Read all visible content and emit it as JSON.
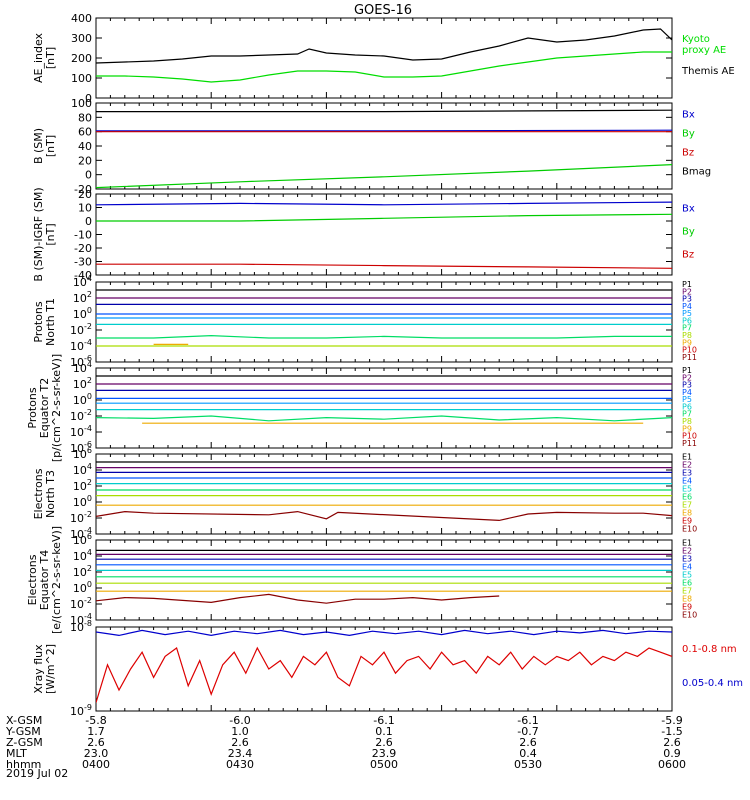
{
  "title": "GOES-16",
  "date_label": "2019 Jul 02",
  "chart_data": [
    {
      "type": "line",
      "name": "ae",
      "ylabel": "AE_index\n[nT]",
      "ylim": [
        0,
        400
      ],
      "yticks": [
        0,
        100,
        200,
        300,
        400
      ],
      "log": false,
      "series": [
        {
          "name": "Kyoto\nproxy AE",
          "color": "#00dd00",
          "x": [
            0,
            0.05,
            0.1,
            0.15,
            0.2,
            0.25,
            0.3,
            0.35,
            0.4,
            0.45,
            0.5,
            0.55,
            0.6,
            0.65,
            0.7,
            0.75,
            0.8,
            0.85,
            0.9,
            0.95,
            1
          ],
          "y": [
            110,
            110,
            105,
            95,
            80,
            90,
            115,
            135,
            135,
            130,
            105,
            105,
            110,
            135,
            160,
            180,
            200,
            210,
            220,
            230,
            230
          ]
        },
        {
          "name": "Themis AE",
          "color": "#000000",
          "x": [
            0,
            0.05,
            0.1,
            0.15,
            0.2,
            0.25,
            0.3,
            0.35,
            0.37,
            0.4,
            0.45,
            0.5,
            0.55,
            0.6,
            0.65,
            0.7,
            0.75,
            0.8,
            0.85,
            0.9,
            0.95,
            0.98,
            1
          ],
          "y": [
            175,
            180,
            185,
            195,
            210,
            210,
            215,
            220,
            245,
            225,
            215,
            210,
            190,
            195,
            230,
            260,
            300,
            280,
            290,
            310,
            340,
            345,
            290
          ]
        }
      ]
    },
    {
      "type": "line",
      "name": "b_sm",
      "ylabel": "B (SM)\n[nT]",
      "ylim": [
        -20,
        100
      ],
      "yticks": [
        -20,
        0,
        20,
        40,
        60,
        80,
        100
      ],
      "log": false,
      "series": [
        {
          "name": "Bx",
          "color": "#0000cc",
          "x": [
            0,
            0.5,
            1
          ],
          "y": [
            61,
            61,
            62
          ]
        },
        {
          "name": "By",
          "color": "#00cc00",
          "x": [
            0,
            0.25,
            0.5,
            0.75,
            1
          ],
          "y": [
            -18,
            -10,
            -3,
            5,
            14
          ]
        },
        {
          "name": "Bz",
          "color": "#cc0000",
          "x": [
            0,
            0.5,
            1
          ],
          "y": [
            60,
            60,
            60
          ]
        },
        {
          "name": "Bmag",
          "color": "#000000",
          "x": [
            0,
            0.5,
            1
          ],
          "y": [
            88,
            88,
            90
          ]
        }
      ]
    },
    {
      "type": "line",
      "name": "b_igrf",
      "ylabel": "B (SM)-IGRF (SM)\n[nT]",
      "ylim": [
        -40,
        20
      ],
      "yticks": [
        -40,
        -30,
        -20,
        -10,
        0,
        10,
        20
      ],
      "log": false,
      "series": [
        {
          "name": "Bx",
          "color": "#0000cc",
          "x": [
            0,
            0.25,
            0.5,
            0.75,
            1
          ],
          "y": [
            12,
            13,
            12,
            13,
            14
          ]
        },
        {
          "name": "By",
          "color": "#00cc00",
          "x": [
            0,
            0.25,
            0.5,
            0.75,
            1
          ],
          "y": [
            0,
            0,
            2,
            4,
            5
          ]
        },
        {
          "name": "Bz",
          "color": "#cc0000",
          "x": [
            0,
            0.25,
            0.5,
            0.75,
            1
          ],
          "y": [
            -32,
            -32,
            -33,
            -34,
            -35
          ]
        }
      ]
    },
    {
      "type": "line",
      "name": "protons_t1",
      "ylabel": "Protons\nNorth T1",
      "ylim": [
        -6,
        4
      ],
      "yticks": [
        -6,
        -4,
        -2,
        0,
        2,
        4
      ],
      "log": true,
      "series": [
        {
          "name": "P1",
          "color": "#000000",
          "x": [
            0,
            1
          ],
          "y": [
            3,
            3
          ]
        },
        {
          "name": "P2",
          "color": "#660066",
          "x": [
            0,
            1
          ],
          "y": [
            2,
            2
          ]
        },
        {
          "name": "P3",
          "color": "#0000aa",
          "x": [
            0,
            1
          ],
          "y": [
            1.2,
            1.2
          ]
        },
        {
          "name": "P4",
          "color": "#0055ff",
          "x": [
            0,
            1
          ],
          "y": [
            0,
            0
          ]
        },
        {
          "name": "P5",
          "color": "#0099ff",
          "x": [
            0,
            1
          ],
          "y": [
            -0.5,
            -0.5
          ]
        },
        {
          "name": "P6",
          "color": "#00cccc",
          "x": [
            0,
            1
          ],
          "y": [
            -1.3,
            -1.3
          ]
        },
        {
          "name": "P7",
          "color": "#00dd66",
          "x": [
            0,
            0.1,
            0.2,
            0.3,
            0.4,
            0.5,
            0.6,
            0.7,
            0.8,
            0.9,
            1
          ],
          "y": [
            -3,
            -3,
            -2.7,
            -3,
            -3,
            -2.8,
            -3,
            -3,
            -3,
            -2.8,
            -2.8
          ]
        },
        {
          "name": "P8",
          "color": "#aadd00",
          "x": [
            0,
            1
          ],
          "y": [
            -4,
            -4
          ]
        },
        {
          "name": "P9",
          "color": "#eeaa00",
          "x": [
            0.1,
            0.16
          ],
          "y": [
            -3.8,
            -3.8
          ]
        },
        {
          "name": "P10",
          "color": "#cc0000",
          "x": [
            0,
            1
          ],
          "y": [
            -8,
            -8
          ]
        },
        {
          "name": "P11",
          "color": "#880000",
          "x": [
            0,
            1
          ],
          "y": [
            -8,
            -8
          ]
        }
      ]
    },
    {
      "type": "line",
      "name": "protons_t2",
      "ylabel": "Protons\nEquator T2\n[p/(cm^2-s-sr-keV)]",
      "ylim": [
        -6,
        4
      ],
      "yticks": [
        -6,
        -4,
        -2,
        0,
        2,
        4
      ],
      "log": true,
      "series": [
        {
          "name": "P1",
          "color": "#000000",
          "x": [
            0,
            1
          ],
          "y": [
            3,
            3
          ]
        },
        {
          "name": "P2",
          "color": "#660066",
          "x": [
            0,
            1
          ],
          "y": [
            2,
            2
          ]
        },
        {
          "name": "P3",
          "color": "#0000aa",
          "x": [
            0,
            1
          ],
          "y": [
            1.2,
            1.2
          ]
        },
        {
          "name": "P4",
          "color": "#0055ff",
          "x": [
            0,
            1
          ],
          "y": [
            0.2,
            0.2
          ]
        },
        {
          "name": "P5",
          "color": "#0099ff",
          "x": [
            0,
            1
          ],
          "y": [
            -0.4,
            -0.4
          ]
        },
        {
          "name": "P6",
          "color": "#00cccc",
          "x": [
            0,
            1
          ],
          "y": [
            -1.2,
            -1.2
          ]
        },
        {
          "name": "P7",
          "color": "#00dd66",
          "x": [
            0,
            0.1,
            0.2,
            0.3,
            0.4,
            0.5,
            0.6,
            0.7,
            0.8,
            0.9,
            1
          ],
          "y": [
            -2.2,
            -2.3,
            -2.0,
            -2.6,
            -2.2,
            -2.4,
            -2.0,
            -2.5,
            -2.2,
            -2.6,
            -2.2
          ]
        },
        {
          "name": "P8",
          "color": "#aadd00",
          "x": [
            0,
            1
          ],
          "y": [
            -8,
            -8
          ]
        },
        {
          "name": "P9",
          "color": "#eeaa00",
          "x": [
            0.08,
            0.3,
            0.85,
            0.95
          ],
          "y": [
            -2.9,
            -2.9,
            -2.9,
            -2.9
          ]
        },
        {
          "name": "P10",
          "color": "#cc0000",
          "x": [
            0,
            1
          ],
          "y": [
            -8,
            -8
          ]
        },
        {
          "name": "P11",
          "color": "#880000",
          "x": [
            0,
            1
          ],
          "y": [
            -8,
            -8
          ]
        }
      ]
    },
    {
      "type": "line",
      "name": "electrons_t3",
      "ylabel": "Electrons\nNorth T3",
      "ylim": [
        -4,
        6
      ],
      "yticks": [
        -4,
        -2,
        0,
        2,
        4,
        6
      ],
      "log": true,
      "series": [
        {
          "name": "E1",
          "color": "#000000",
          "x": [
            0,
            1
          ],
          "y": [
            5,
            5
          ]
        },
        {
          "name": "E2",
          "color": "#660066",
          "x": [
            0,
            1
          ],
          "y": [
            4.3,
            4.3
          ]
        },
        {
          "name": "E3",
          "color": "#0000aa",
          "x": [
            0,
            1
          ],
          "y": [
            3.7,
            3.7
          ]
        },
        {
          "name": "E4",
          "color": "#0055ff",
          "x": [
            0,
            1
          ],
          "y": [
            3,
            3
          ]
        },
        {
          "name": "E5",
          "color": "#00cccc",
          "x": [
            0,
            1
          ],
          "y": [
            2.3,
            2.3
          ]
        },
        {
          "name": "E6",
          "color": "#00dd66",
          "x": [
            0,
            1
          ],
          "y": [
            1.5,
            1.5
          ]
        },
        {
          "name": "E7",
          "color": "#aadd00",
          "x": [
            0,
            1
          ],
          "y": [
            0.8,
            0.8
          ]
        },
        {
          "name": "E8",
          "color": "#eeaa00",
          "x": [
            0,
            1
          ],
          "y": [
            -0.4,
            -0.4
          ]
        },
        {
          "name": "E9",
          "color": "#cc0000",
          "x": [
            0,
            1
          ],
          "y": [
            -8,
            -8
          ]
        },
        {
          "name": "E10",
          "color": "#880000",
          "x": [
            0,
            0.05,
            0.1,
            0.3,
            0.35,
            0.4,
            0.42,
            0.7,
            0.75,
            0.8,
            0.9,
            0.95,
            1
          ],
          "y": [
            -1.8,
            -1.2,
            -1.4,
            -1.6,
            -1.2,
            -2.1,
            -1.3,
            -2.3,
            -1.5,
            -1.3,
            -1.4,
            -1.4,
            -1.7
          ]
        }
      ]
    },
    {
      "type": "line",
      "name": "electrons_t4",
      "ylabel": "Electrons\nEquator T4\n[e/(cm^2-s-sr-keV)]",
      "ylim": [
        -4,
        6
      ],
      "yticks": [
        -4,
        -2,
        0,
        2,
        4,
        6
      ],
      "log": true,
      "series": [
        {
          "name": "E1",
          "color": "#000000",
          "x": [
            0,
            1
          ],
          "y": [
            4.7,
            4.7
          ]
        },
        {
          "name": "E2",
          "color": "#660066",
          "x": [
            0,
            1
          ],
          "y": [
            4.2,
            4.2
          ]
        },
        {
          "name": "E3",
          "color": "#0000aa",
          "x": [
            0,
            1
          ],
          "y": [
            3.6,
            3.6
          ]
        },
        {
          "name": "E4",
          "color": "#0055ff",
          "x": [
            0,
            1
          ],
          "y": [
            2.9,
            2.9
          ]
        },
        {
          "name": "E5",
          "color": "#00cccc",
          "x": [
            0,
            1
          ],
          "y": [
            2.2,
            2.2
          ]
        },
        {
          "name": "E6",
          "color": "#00dd66",
          "x": [
            0,
            1
          ],
          "y": [
            1.4,
            1.4
          ]
        },
        {
          "name": "E7",
          "color": "#aadd00",
          "x": [
            0,
            1
          ],
          "y": [
            0.6,
            0.6
          ]
        },
        {
          "name": "E8",
          "color": "#eeaa00",
          "x": [
            0,
            1
          ],
          "y": [
            -0.4,
            -0.4
          ]
        },
        {
          "name": "E9",
          "color": "#cc0000",
          "x": [
            0,
            1
          ],
          "y": [
            -8,
            -8
          ]
        },
        {
          "name": "E10",
          "color": "#880000",
          "x": [
            0,
            0.05,
            0.1,
            0.2,
            0.25,
            0.3,
            0.35,
            0.4,
            0.45,
            0.5,
            0.55,
            0.6,
            0.65,
            0.7
          ],
          "y": [
            -1.6,
            -1.2,
            -1.3,
            -1.8,
            -1.2,
            -0.8,
            -1.5,
            -1.9,
            -1.4,
            -1.4,
            -1.2,
            -1.5,
            -1.2,
            -1.0
          ]
        }
      ]
    },
    {
      "type": "line",
      "name": "xray",
      "ylabel": "Xray flux\n[W/m^2]",
      "ylim": [
        -9,
        -8
      ],
      "yticks": [
        -9,
        -8
      ],
      "log": true,
      "series": [
        {
          "name": "0.1-0.8 nm",
          "color": "#dd0000",
          "x": [
            0,
            0.02,
            0.04,
            0.06,
            0.08,
            0.1,
            0.12,
            0.14,
            0.16,
            0.18,
            0.2,
            0.22,
            0.24,
            0.26,
            0.28,
            0.3,
            0.32,
            0.34,
            0.36,
            0.38,
            0.4,
            0.42,
            0.44,
            0.46,
            0.48,
            0.5,
            0.52,
            0.54,
            0.56,
            0.58,
            0.6,
            0.62,
            0.64,
            0.66,
            0.68,
            0.7,
            0.72,
            0.74,
            0.76,
            0.78,
            0.8,
            0.82,
            0.84,
            0.86,
            0.88,
            0.9,
            0.92,
            0.94,
            0.96,
            0.98,
            1
          ],
          "y": [
            -8.9,
            -8.45,
            -8.75,
            -8.5,
            -8.3,
            -8.6,
            -8.35,
            -8.25,
            -8.7,
            -8.4,
            -8.8,
            -8.45,
            -8.3,
            -8.55,
            -8.25,
            -8.5,
            -8.4,
            -8.6,
            -8.35,
            -8.45,
            -8.3,
            -8.6,
            -8.7,
            -8.35,
            -8.45,
            -8.3,
            -8.55,
            -8.4,
            -8.35,
            -8.5,
            -8.3,
            -8.45,
            -8.4,
            -8.55,
            -8.35,
            -8.45,
            -8.3,
            -8.5,
            -8.35,
            -8.45,
            -8.35,
            -8.4,
            -8.3,
            -8.45,
            -8.35,
            -8.4,
            -8.3,
            -8.35,
            -8.25,
            -8.3,
            -8.35
          ]
        },
        {
          "name": "0.05-0.4 nm",
          "color": "#0000cc",
          "x": [
            0,
            0.04,
            0.08,
            0.12,
            0.16,
            0.2,
            0.24,
            0.28,
            0.32,
            0.36,
            0.4,
            0.44,
            0.48,
            0.52,
            0.56,
            0.6,
            0.64,
            0.68,
            0.72,
            0.76,
            0.8,
            0.84,
            0.88,
            0.92,
            0.96,
            1
          ],
          "y": [
            -8.06,
            -8.1,
            -8.04,
            -8.09,
            -8.05,
            -8.1,
            -8.05,
            -8.08,
            -8.04,
            -8.09,
            -8.06,
            -8.1,
            -8.05,
            -8.08,
            -8.05,
            -8.09,
            -8.04,
            -8.08,
            -8.05,
            -8.09,
            -8.05,
            -8.07,
            -8.04,
            -8.08,
            -8.05,
            -8.06
          ]
        }
      ]
    }
  ],
  "xaxis": {
    "row_labels": [
      "X-GSM",
      "Y-GSM",
      "Z-GSM",
      "MLT",
      "hhmm"
    ],
    "columns": [
      {
        "values": [
          "-5.8",
          "1.7",
          "2.6",
          "23.0",
          "0400"
        ]
      },
      {
        "values": [
          "-6.0",
          "1.0",
          "2.6",
          "23.4",
          "0430"
        ]
      },
      {
        "values": [
          "-6.1",
          "0.1",
          "2.6",
          "23.9",
          "0500"
        ]
      },
      {
        "values": [
          "-6.1",
          "-0.7",
          "2.6",
          "0.4",
          "0530"
        ]
      },
      {
        "values": [
          "-5.9",
          "-1.5",
          "2.6",
          "0.9",
          "0600"
        ]
      }
    ]
  }
}
